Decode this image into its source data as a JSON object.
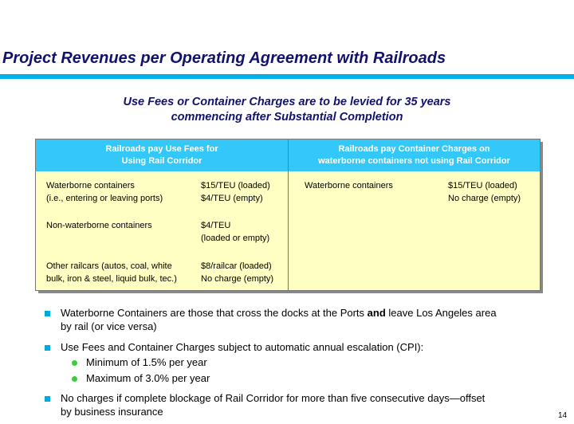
{
  "header": {
    "title": "Project Revenues per Operating Agreement with Railroads"
  },
  "subtitle": [
    "Use Fees or Container Charges are to be levied for 35 years",
    "commencing after Substantial Completion"
  ],
  "table": {
    "headers": [
      [
        "Railroads pay Use Fees for",
        "Using Rail Corridor"
      ],
      [
        "Railroads pay Container Charges on",
        "waterborne containers not using Rail Corridor"
      ]
    ],
    "rows": [
      [
        [
          "Waterborne containers",
          "(i.e., entering or leaving ports)"
        ],
        [
          "$15/TEU (loaded)",
          "$4/TEU (empty)"
        ],
        [
          "Waterborne containers"
        ],
        [
          "$15/TEU (loaded)",
          "No charge (empty)"
        ]
      ],
      [
        [
          "Non-waterborne containers"
        ],
        [
          "$4/TEU",
          "(loaded or empty)"
        ]
      ],
      [
        [
          "Other railcars (autos, coal, white",
          "bulk, iron & steel, liquid bulk, tec.)"
        ],
        [
          "$8/railcar (loaded)",
          "No charge (empty)"
        ]
      ]
    ]
  },
  "bullets": [
    {
      "lines": [
        [
          "Waterborne Containers are those that cross the docks at the Ports ",
          "and",
          " leave Los Angeles area"
        ],
        [
          "by rail (or vice versa)"
        ]
      ]
    },
    {
      "lines": [
        [
          "Use Fees and Container Charges subject to automatic annual escalation (CPI):"
        ]
      ],
      "sub": [
        "Minimum of 1.5% per year",
        "Maximum of 3.0% per year"
      ]
    },
    {
      "lines": [
        [
          "No charges if complete blockage of Rail Corridor for more than five consecutive days—offset"
        ],
        [
          "by business insurance"
        ]
      ]
    }
  ],
  "page_number": "14"
}
